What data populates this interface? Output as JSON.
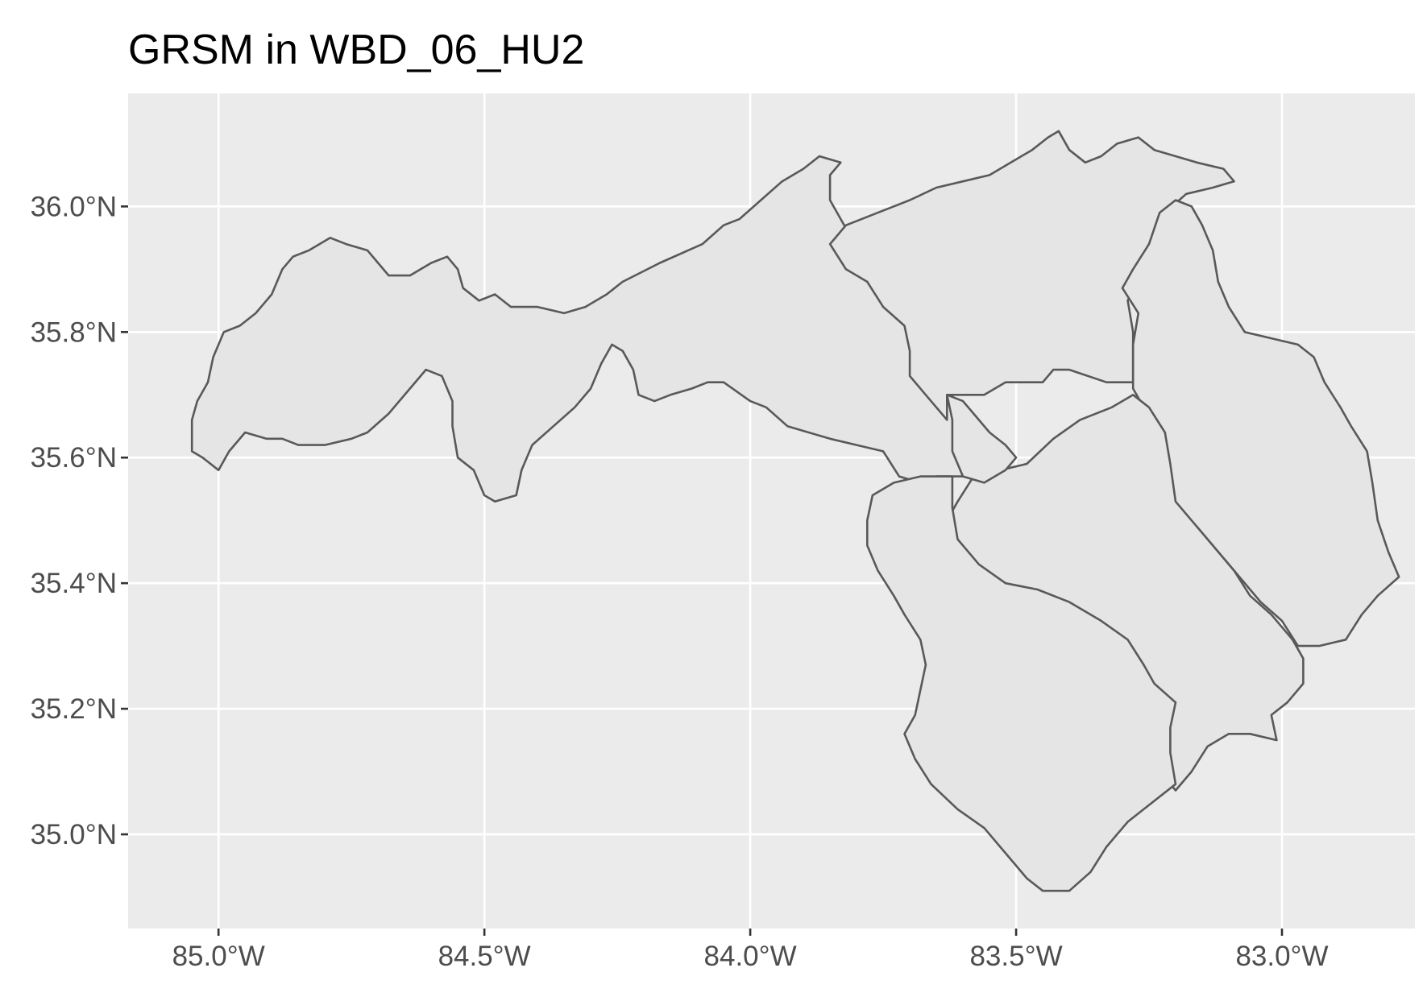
{
  "title": "GRSM in WBD_06_HU2",
  "colors": {
    "panel_background": "#EBEBEB",
    "gridline": "#FFFFFF",
    "polygon_fill": "#E5E5E5",
    "polygon_stroke": "#595959",
    "tick_label": "#4D4D4D"
  },
  "axes": {
    "x": {
      "range": [
        -85.17,
        -82.75
      ],
      "ticks": [
        {
          "value": -85.0,
          "label": "85.0°W"
        },
        {
          "value": -84.5,
          "label": "84.5°W"
        },
        {
          "value": -84.0,
          "label": "84.0°W"
        },
        {
          "value": -83.5,
          "label": "83.5°W"
        },
        {
          "value": -83.0,
          "label": "83.0°W"
        }
      ]
    },
    "y": {
      "range": [
        34.85,
        36.18
      ],
      "ticks": [
        {
          "value": 35.0,
          "label": "35.0°N"
        },
        {
          "value": 35.2,
          "label": "35.2°N"
        },
        {
          "value": 35.4,
          "label": "35.4°N"
        },
        {
          "value": 35.6,
          "label": "35.6°N"
        },
        {
          "value": 35.8,
          "label": "35.8°N"
        },
        {
          "value": 36.0,
          "label": "36.0°N"
        }
      ]
    }
  },
  "features": [
    {
      "id": "western-watershed",
      "coords": [
        [
          -85.05,
          35.61
        ],
        [
          -85.05,
          35.66
        ],
        [
          -85.04,
          35.69
        ],
        [
          -85.02,
          35.72
        ],
        [
          -85.01,
          35.76
        ],
        [
          -84.99,
          35.8
        ],
        [
          -84.96,
          35.81
        ],
        [
          -84.93,
          35.83
        ],
        [
          -84.9,
          35.86
        ],
        [
          -84.88,
          35.9
        ],
        [
          -84.86,
          35.92
        ],
        [
          -84.83,
          35.93
        ],
        [
          -84.79,
          35.95
        ],
        [
          -84.76,
          35.94
        ],
        [
          -84.72,
          35.93
        ],
        [
          -84.7,
          35.91
        ],
        [
          -84.68,
          35.89
        ],
        [
          -84.64,
          35.89
        ],
        [
          -84.6,
          35.91
        ],
        [
          -84.57,
          35.92
        ],
        [
          -84.55,
          35.9
        ],
        [
          -84.54,
          35.87
        ],
        [
          -84.51,
          35.85
        ],
        [
          -84.48,
          35.86
        ],
        [
          -84.45,
          35.84
        ],
        [
          -84.4,
          35.84
        ],
        [
          -84.35,
          35.83
        ],
        [
          -84.31,
          35.84
        ],
        [
          -84.27,
          35.86
        ],
        [
          -84.24,
          35.88
        ],
        [
          -84.17,
          35.91
        ],
        [
          -84.09,
          35.94
        ],
        [
          -84.05,
          35.97
        ],
        [
          -84.02,
          35.98
        ],
        [
          -83.98,
          36.01
        ],
        [
          -83.94,
          36.04
        ],
        [
          -83.9,
          36.06
        ],
        [
          -83.87,
          36.08
        ],
        [
          -83.83,
          36.07
        ],
        [
          -83.85,
          36.05
        ],
        [
          -83.85,
          36.01
        ],
        [
          -83.83,
          35.98
        ],
        [
          -83.81,
          35.95
        ],
        [
          -83.8,
          35.93
        ],
        [
          -83.77,
          35.9
        ],
        [
          -83.75,
          35.87
        ],
        [
          -83.73,
          35.84
        ],
        [
          -83.7,
          35.82
        ],
        [
          -83.68,
          35.8
        ],
        [
          -83.65,
          35.78
        ],
        [
          -83.62,
          35.72
        ],
        [
          -83.62,
          35.66
        ],
        [
          -83.6,
          35.62
        ],
        [
          -83.6,
          35.57
        ],
        [
          -83.65,
          35.57
        ],
        [
          -83.68,
          35.56
        ],
        [
          -83.72,
          35.57
        ],
        [
          -83.75,
          35.61
        ],
        [
          -83.8,
          35.62
        ],
        [
          -83.85,
          35.63
        ],
        [
          -83.93,
          35.65
        ],
        [
          -83.97,
          35.68
        ],
        [
          -84.0,
          35.69
        ],
        [
          -84.05,
          35.72
        ],
        [
          -84.08,
          35.72
        ],
        [
          -84.11,
          35.71
        ],
        [
          -84.15,
          35.7
        ],
        [
          -84.18,
          35.69
        ],
        [
          -84.21,
          35.7
        ],
        [
          -84.22,
          35.74
        ],
        [
          -84.24,
          35.77
        ],
        [
          -84.26,
          35.78
        ],
        [
          -84.28,
          35.75
        ],
        [
          -84.3,
          35.71
        ],
        [
          -84.33,
          35.68
        ],
        [
          -84.37,
          35.65
        ],
        [
          -84.41,
          35.62
        ],
        [
          -84.43,
          35.58
        ],
        [
          -84.44,
          35.54
        ],
        [
          -84.48,
          35.53
        ],
        [
          -84.5,
          35.54
        ],
        [
          -84.52,
          35.58
        ],
        [
          -84.55,
          35.6
        ],
        [
          -84.56,
          35.65
        ],
        [
          -84.56,
          35.69
        ],
        [
          -84.58,
          35.73
        ],
        [
          -84.61,
          35.74
        ],
        [
          -84.64,
          35.71
        ],
        [
          -84.68,
          35.67
        ],
        [
          -84.72,
          35.64
        ],
        [
          -84.75,
          35.63
        ],
        [
          -84.8,
          35.62
        ],
        [
          -84.85,
          35.62
        ],
        [
          -84.88,
          35.63
        ],
        [
          -84.91,
          35.63
        ],
        [
          -84.95,
          35.64
        ],
        [
          -84.98,
          35.61
        ],
        [
          -85.0,
          35.58
        ],
        [
          -85.03,
          35.6
        ],
        [
          -85.05,
          35.61
        ]
      ]
    },
    {
      "id": "northern-watershed",
      "coords": [
        [
          -83.85,
          35.94
        ],
        [
          -83.82,
          35.97
        ],
        [
          -83.76,
          35.99
        ],
        [
          -83.7,
          36.01
        ],
        [
          -83.65,
          36.03
        ],
        [
          -83.6,
          36.04
        ],
        [
          -83.55,
          36.05
        ],
        [
          -83.51,
          36.07
        ],
        [
          -83.47,
          36.09
        ],
        [
          -83.44,
          36.11
        ],
        [
          -83.42,
          36.12
        ],
        [
          -83.4,
          36.09
        ],
        [
          -83.37,
          36.07
        ],
        [
          -83.34,
          36.08
        ],
        [
          -83.31,
          36.1
        ],
        [
          -83.27,
          36.11
        ],
        [
          -83.24,
          36.09
        ],
        [
          -83.2,
          36.08
        ],
        [
          -83.16,
          36.07
        ],
        [
          -83.11,
          36.06
        ],
        [
          -83.09,
          36.04
        ],
        [
          -83.13,
          36.03
        ],
        [
          -83.18,
          36.02
        ],
        [
          -83.22,
          35.99
        ],
        [
          -83.25,
          35.94
        ],
        [
          -83.27,
          35.89
        ],
        [
          -83.29,
          35.85
        ],
        [
          -83.28,
          35.8
        ],
        [
          -83.28,
          35.72
        ],
        [
          -83.33,
          35.72
        ],
        [
          -83.4,
          35.74
        ],
        [
          -83.43,
          35.74
        ],
        [
          -83.45,
          35.72
        ],
        [
          -83.52,
          35.72
        ],
        [
          -83.56,
          35.7
        ],
        [
          -83.63,
          35.7
        ],
        [
          -83.63,
          35.66
        ],
        [
          -83.67,
          35.7
        ],
        [
          -83.7,
          35.73
        ],
        [
          -83.7,
          35.77
        ],
        [
          -83.71,
          35.81
        ],
        [
          -83.75,
          35.84
        ],
        [
          -83.78,
          35.88
        ],
        [
          -83.82,
          35.9
        ],
        [
          -83.85,
          35.94
        ]
      ]
    },
    {
      "id": "northeast-watershed",
      "coords": [
        [
          -83.28,
          35.71
        ],
        [
          -83.28,
          35.78
        ],
        [
          -83.27,
          35.83
        ],
        [
          -83.3,
          35.87
        ],
        [
          -83.28,
          35.9
        ],
        [
          -83.25,
          35.94
        ],
        [
          -83.23,
          35.99
        ],
        [
          -83.2,
          36.01
        ],
        [
          -83.17,
          36.0
        ],
        [
          -83.15,
          35.97
        ],
        [
          -83.13,
          35.93
        ],
        [
          -83.12,
          35.88
        ],
        [
          -83.1,
          35.84
        ],
        [
          -83.07,
          35.8
        ],
        [
          -83.02,
          35.79
        ],
        [
          -82.97,
          35.78
        ],
        [
          -82.94,
          35.76
        ],
        [
          -82.92,
          35.72
        ],
        [
          -82.89,
          35.68
        ],
        [
          -82.87,
          35.65
        ],
        [
          -82.84,
          35.61
        ],
        [
          -82.83,
          35.56
        ],
        [
          -82.82,
          35.5
        ],
        [
          -82.8,
          35.45
        ],
        [
          -82.78,
          35.41
        ],
        [
          -82.82,
          35.38
        ],
        [
          -82.85,
          35.35
        ],
        [
          -82.88,
          35.31
        ],
        [
          -82.93,
          35.3
        ],
        [
          -82.97,
          35.3
        ],
        [
          -83.0,
          35.34
        ],
        [
          -83.04,
          35.37
        ],
        [
          -83.08,
          35.41
        ],
        [
          -83.12,
          35.45
        ],
        [
          -83.16,
          35.49
        ],
        [
          -83.21,
          35.53
        ],
        [
          -83.21,
          35.58
        ],
        [
          -83.22,
          35.63
        ],
        [
          -83.26,
          35.68
        ],
        [
          -83.28,
          35.71
        ]
      ]
    },
    {
      "id": "central-watershed",
      "coords": [
        [
          -83.58,
          35.57
        ],
        [
          -83.53,
          35.58
        ],
        [
          -83.48,
          35.59
        ],
        [
          -83.43,
          35.63
        ],
        [
          -83.38,
          35.66
        ],
        [
          -83.32,
          35.68
        ],
        [
          -83.28,
          35.7
        ],
        [
          -83.25,
          35.68
        ],
        [
          -83.22,
          35.64
        ],
        [
          -83.21,
          35.59
        ],
        [
          -83.2,
          35.53
        ],
        [
          -83.17,
          35.5
        ],
        [
          -83.13,
          35.46
        ],
        [
          -83.09,
          35.42
        ],
        [
          -83.06,
          35.38
        ],
        [
          -83.02,
          35.35
        ],
        [
          -82.98,
          35.31
        ],
        [
          -82.96,
          35.28
        ],
        [
          -82.96,
          35.24
        ],
        [
          -82.99,
          35.21
        ],
        [
          -83.02,
          35.19
        ],
        [
          -83.01,
          35.15
        ],
        [
          -83.06,
          35.16
        ],
        [
          -83.1,
          35.16
        ],
        [
          -83.14,
          35.14
        ],
        [
          -83.17,
          35.1
        ],
        [
          -83.2,
          35.07
        ],
        [
          -83.23,
          35.1
        ],
        [
          -83.26,
          35.15
        ],
        [
          -83.26,
          35.21
        ],
        [
          -83.3,
          35.23
        ],
        [
          -83.34,
          35.25
        ],
        [
          -83.37,
          35.3
        ],
        [
          -83.4,
          35.32
        ],
        [
          -83.44,
          35.35
        ],
        [
          -83.48,
          35.37
        ],
        [
          -83.52,
          35.39
        ],
        [
          -83.55,
          35.41
        ],
        [
          -83.59,
          35.44
        ],
        [
          -83.62,
          35.45
        ],
        [
          -83.63,
          35.5
        ],
        [
          -83.61,
          35.53
        ],
        [
          -83.58,
          35.57
        ]
      ]
    },
    {
      "id": "southern-watershed",
      "coords": [
        [
          -83.62,
          35.57
        ],
        [
          -83.68,
          35.57
        ],
        [
          -83.73,
          35.56
        ],
        [
          -83.77,
          35.54
        ],
        [
          -83.78,
          35.5
        ],
        [
          -83.78,
          35.46
        ],
        [
          -83.76,
          35.42
        ],
        [
          -83.73,
          35.38
        ],
        [
          -83.71,
          35.35
        ],
        [
          -83.68,
          35.31
        ],
        [
          -83.67,
          35.27
        ],
        [
          -83.68,
          35.23
        ],
        [
          -83.69,
          35.19
        ],
        [
          -83.71,
          35.16
        ],
        [
          -83.69,
          35.12
        ],
        [
          -83.66,
          35.08
        ],
        [
          -83.61,
          35.04
        ],
        [
          -83.56,
          35.01
        ],
        [
          -83.52,
          34.97
        ],
        [
          -83.48,
          34.93
        ],
        [
          -83.45,
          34.91
        ],
        [
          -83.4,
          34.91
        ],
        [
          -83.36,
          34.94
        ],
        [
          -83.33,
          34.98
        ],
        [
          -83.29,
          35.02
        ],
        [
          -83.26,
          35.04
        ],
        [
          -83.2,
          35.08
        ],
        [
          -83.21,
          35.13
        ],
        [
          -83.21,
          35.17
        ],
        [
          -83.2,
          35.21
        ],
        [
          -83.24,
          35.24
        ],
        [
          -83.26,
          35.27
        ],
        [
          -83.29,
          35.31
        ],
        [
          -83.34,
          35.34
        ],
        [
          -83.4,
          35.37
        ],
        [
          -83.46,
          35.39
        ],
        [
          -83.52,
          35.4
        ],
        [
          -83.57,
          35.43
        ],
        [
          -83.61,
          35.47
        ],
        [
          -83.62,
          35.52
        ],
        [
          -83.62,
          35.57
        ]
      ]
    },
    {
      "id": "inner-watershed",
      "coords": [
        [
          -83.63,
          35.7
        ],
        [
          -83.6,
          35.69
        ],
        [
          -83.58,
          35.67
        ],
        [
          -83.55,
          35.64
        ],
        [
          -83.52,
          35.62
        ],
        [
          -83.5,
          35.6
        ],
        [
          -83.52,
          35.58
        ],
        [
          -83.56,
          35.56
        ],
        [
          -83.6,
          35.57
        ],
        [
          -83.62,
          35.61
        ],
        [
          -83.62,
          35.66
        ],
        [
          -83.63,
          35.7
        ]
      ]
    }
  ]
}
